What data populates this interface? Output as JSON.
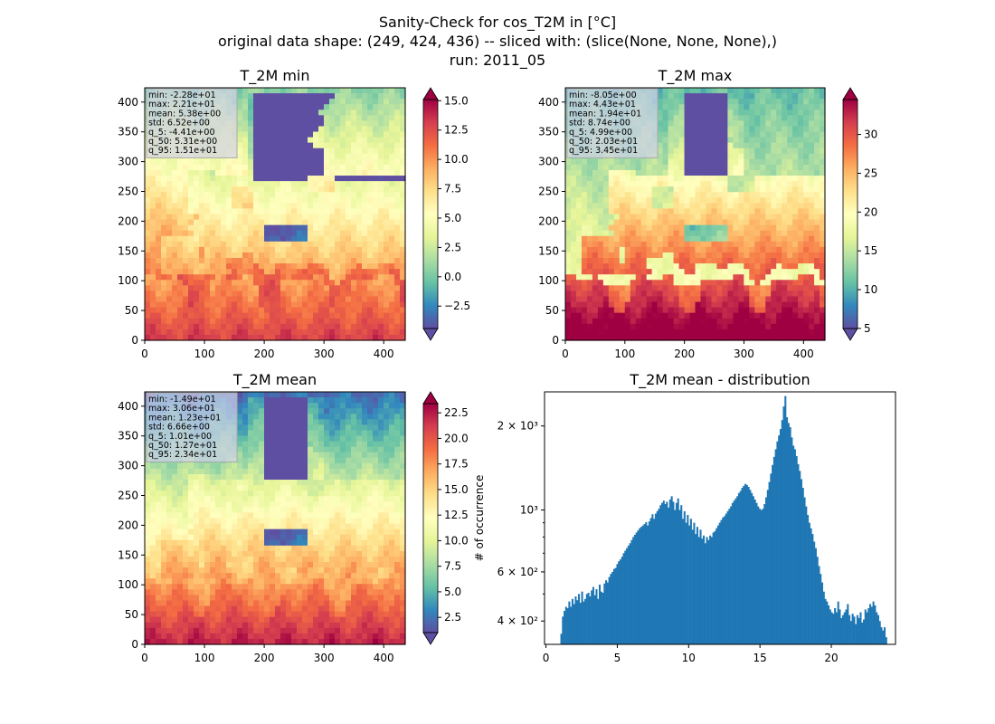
{
  "figure": {
    "title_lines": [
      "Sanity-Check for cos_T2M in [°C]",
      "original data shape: (249, 424, 436) -- sliced with: (slice(None, None, None),)",
      "run: 2011_05"
    ]
  },
  "colors": {
    "colormap": "Spectral_r",
    "colormap_stops": [
      "#5e4fa2",
      "#3288bd",
      "#66c2a5",
      "#abdda4",
      "#e6f598",
      "#ffffbf",
      "#fee08b",
      "#fdae61",
      "#f46d43",
      "#d53e4f",
      "#9e0142"
    ],
    "histogram_bar": "#1f77b4",
    "stats_box_bg": "#d3d3e8"
  },
  "chart_data": [
    {
      "type": "heatmap",
      "title": "T_2M min",
      "xlim": [
        0,
        436
      ],
      "ylim": [
        0,
        424
      ],
      "xticks": [
        0,
        100,
        200,
        300,
        400
      ],
      "yticks": [
        0,
        50,
        100,
        150,
        200,
        250,
        300,
        350,
        400
      ],
      "colorbar": {
        "min": -4.41,
        "max": 15.1,
        "ticks": [
          "−2.5",
          "0.0",
          "2.5",
          "5.0",
          "7.5",
          "10.0",
          "12.5",
          "15.0"
        ],
        "tick_values": [
          -2.5,
          0,
          2.5,
          5,
          7.5,
          10,
          12.5,
          15
        ],
        "extend": "both"
      },
      "stats": [
        "min: -2.28e+01",
        "max: 2.21e+01",
        "mean: 5.38e+00",
        "std: 6.52e+00",
        "q_5: -4.41e+00",
        "q_50: 5.31e+00",
        "q_95: 1.51e+01"
      ]
    },
    {
      "type": "heatmap",
      "title": "T_2M max",
      "xlim": [
        0,
        436
      ],
      "ylim": [
        0,
        424
      ],
      "xticks": [
        0,
        100,
        200,
        300,
        400
      ],
      "yticks": [
        0,
        50,
        100,
        150,
        200,
        250,
        300,
        350,
        400
      ],
      "colorbar": {
        "min": 4.99,
        "max": 34.5,
        "ticks": [
          "5",
          "10",
          "15",
          "20",
          "25",
          "30"
        ],
        "tick_values": [
          5,
          10,
          15,
          20,
          25,
          30
        ],
        "extend": "both"
      },
      "stats": [
        "min: -8.05e+00",
        "max: 4.43e+01",
        "mean: 1.94e+01",
        "std: 8.74e+00",
        "q_5: 4.99e+00",
        "q_50: 2.03e+01",
        "q_95: 3.45e+01"
      ]
    },
    {
      "type": "heatmap",
      "title": "T_2M mean",
      "xlim": [
        0,
        436
      ],
      "ylim": [
        0,
        424
      ],
      "xticks": [
        0,
        100,
        200,
        300,
        400
      ],
      "yticks": [
        0,
        50,
        100,
        150,
        200,
        250,
        300,
        350,
        400
      ],
      "colorbar": {
        "min": 1.01,
        "max": 23.4,
        "ticks": [
          "2.5",
          "5.0",
          "7.5",
          "10.0",
          "12.5",
          "15.0",
          "17.5",
          "20.0",
          "22.5"
        ],
        "tick_values": [
          2.5,
          5,
          7.5,
          10,
          12.5,
          15,
          17.5,
          20,
          22.5
        ],
        "extend": "both"
      },
      "stats": [
        "min: -1.49e+01",
        "max: 3.06e+01",
        "mean: 1.23e+01",
        "std: 6.66e+00",
        "q_5: 1.01e+00",
        "q_50: 1.27e+01",
        "q_95: 2.34e+01"
      ]
    },
    {
      "type": "bar",
      "title": "T_2M mean - distribution",
      "ylabel": "# of occurrence",
      "xlim": [
        -0.1,
        24.5
      ],
      "ylim_log": [
        330,
        2650
      ],
      "yscale": "log",
      "xticks": [
        "0",
        "5",
        "10",
        "15",
        "20"
      ],
      "xtick_values": [
        0,
        5,
        10,
        15,
        20
      ],
      "ytick_labels": [
        "4 × 10²",
        "6 × 10²",
        "10³",
        "2 × 10³"
      ],
      "ytick_values": [
        400,
        600,
        1000,
        2000
      ],
      "bin_width": 0.1122,
      "x_start": 1.01,
      "values": [
        360,
        415,
        435,
        450,
        445,
        470,
        450,
        480,
        460,
        490,
        475,
        500,
        465,
        510,
        470,
        480,
        500,
        505,
        490,
        515,
        530,
        495,
        520,
        480,
        540,
        510,
        505,
        545,
        560,
        550,
        575,
        590,
        600,
        615,
        620,
        640,
        655,
        665,
        680,
        700,
        715,
        730,
        745,
        760,
        780,
        800,
        815,
        830,
        845,
        860,
        870,
        880,
        890,
        905,
        880,
        910,
        935,
        965,
        930,
        970,
        990,
        1010,
        1040,
        1060,
        1080,
        1050,
        1070,
        1020,
        1090,
        1120,
        1070,
        1000,
        1060,
        1100,
        1000,
        1040,
        930,
        990,
        900,
        960,
        880,
        930,
        850,
        900,
        820,
        870,
        800,
        850,
        790,
        810,
        760,
        800,
        780,
        810,
        800,
        830,
        840,
        860,
        880,
        900,
        920,
        940,
        950,
        970,
        990,
        1010,
        1030,
        1060,
        1080,
        1100,
        1120,
        1150,
        1170,
        1200,
        1220,
        1240,
        1230,
        1210,
        1180,
        1150,
        1120,
        1090,
        1060,
        1030,
        1010,
        1000,
        1010,
        1050,
        1110,
        1180,
        1260,
        1350,
        1450,
        1550,
        1650,
        1760,
        1850,
        1950,
        2100,
        2350,
        2560,
        2150,
        2050,
        1980,
        1820,
        1700,
        1650,
        1560,
        1460,
        1380,
        1290,
        1200,
        1110,
        1030,
        960,
        900,
        860,
        820,
        770,
        730,
        680,
        630,
        590,
        550,
        510,
        480,
        470,
        455,
        440,
        430,
        425,
        445,
        430,
        470,
        440,
        410,
        420,
        430,
        440,
        460,
        420,
        400,
        425,
        415,
        390,
        420,
        410,
        430,
        395,
        405,
        440,
        430,
        445,
        460,
        450,
        470,
        455,
        430,
        420,
        400,
        380,
        370,
        380,
        350
      ]
    }
  ]
}
